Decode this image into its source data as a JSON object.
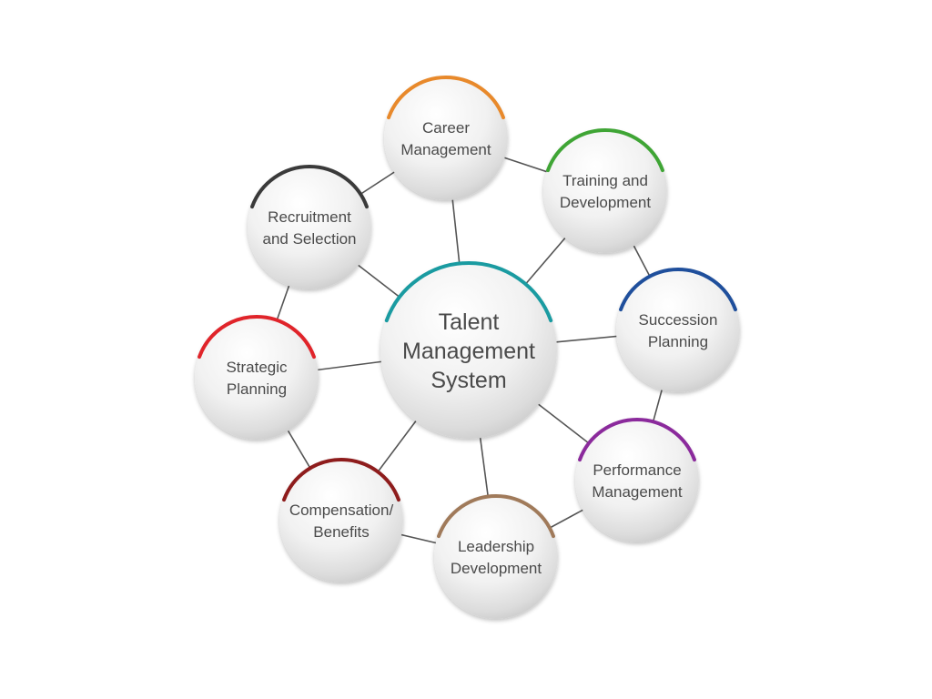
{
  "center": {
    "lines": [
      "Talent",
      "Management",
      "System"
    ],
    "accent": "#1a9ba1"
  },
  "nodes": [
    {
      "id": "career-management",
      "lines": [
        "Career",
        "Management"
      ],
      "accent": "#e8892b"
    },
    {
      "id": "training-development",
      "lines": [
        "Training and",
        "Development"
      ],
      "accent": "#3fa535"
    },
    {
      "id": "succession-planning",
      "lines": [
        "Succession",
        "Planning"
      ],
      "accent": "#1f4f9c"
    },
    {
      "id": "performance-management",
      "lines": [
        "Performance",
        "Management"
      ],
      "accent": "#8b2a9c"
    },
    {
      "id": "leadership-development",
      "lines": [
        "Leadership",
        "Development"
      ],
      "accent": "#a07a5a"
    },
    {
      "id": "compensation-benefits",
      "lines": [
        "Compensation/",
        "Benefits"
      ],
      "accent": "#8e1c1c"
    },
    {
      "id": "strategic-planning",
      "lines": [
        "Strategic",
        "Planning"
      ],
      "accent": "#e0242a"
    },
    {
      "id": "recruitment-selection",
      "lines": [
        "Recruitment",
        "and Selection"
      ],
      "accent": "#3a3a3a"
    }
  ],
  "colors": {
    "connector": "#555555",
    "text": "#4a4a4a"
  }
}
